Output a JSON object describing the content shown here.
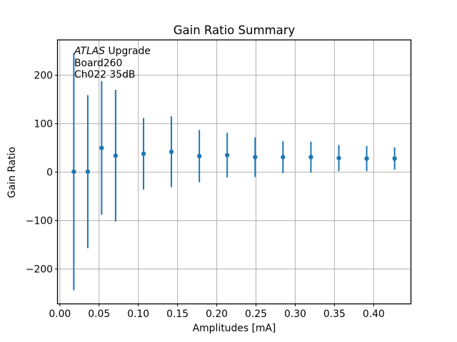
{
  "chart_data": {
    "type": "scatter",
    "title": "Gain Ratio Summary",
    "xlabel": "Amplitudes [mA]",
    "ylabel": "Gain Ratio",
    "annotation": {
      "line1_italic": "ATLAS",
      "line1_regular": " Upgrade",
      "line2": "Board260",
      "line3": "Ch022 35dB"
    },
    "grid": true,
    "legend": false,
    "xlim": [
      -0.003,
      0.4475
    ],
    "ylim": [
      -272,
      273
    ],
    "xticks": [
      0.0,
      0.05,
      0.1,
      0.15,
      0.2,
      0.25,
      0.3,
      0.35,
      0.4
    ],
    "yticks": [
      -200,
      -100,
      0,
      100,
      200
    ],
    "colors": {
      "series": "#1f77b4",
      "grid": "#b0b0b0",
      "axes": "#000000",
      "background": "#ffffff"
    },
    "series": [
      {
        "name": "Gain Ratio",
        "marker": "circle",
        "x": [
          0.0178,
          0.0356,
          0.0533,
          0.0711,
          0.1067,
          0.1422,
          0.1778,
          0.2133,
          0.2489,
          0.2844,
          0.32,
          0.3556,
          0.3911,
          0.4267
        ],
        "y": [
          1,
          1,
          50,
          34,
          38,
          42,
          33,
          35,
          31,
          31,
          31,
          29,
          28,
          28
        ],
        "yerr": [
          245,
          158,
          138,
          136,
          74,
          73,
          54,
          46,
          41,
          33,
          32,
          27,
          26,
          23
        ]
      }
    ]
  }
}
